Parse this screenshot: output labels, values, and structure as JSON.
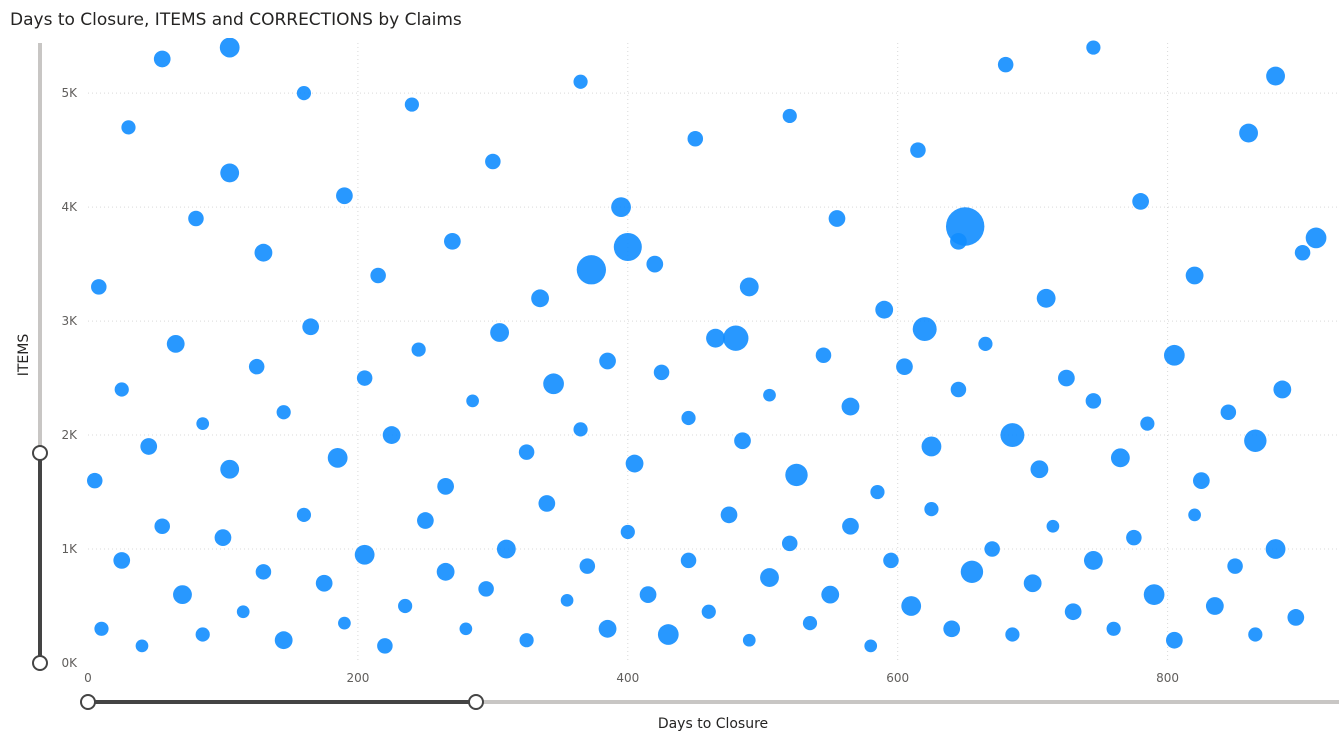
{
  "chart_data": {
    "type": "scatter",
    "title": "Days to Closure, ITEMS and CORRECTIONS by Claims",
    "xlabel": "Days to Closure",
    "ylabel": "ITEMS",
    "color": "#118dff",
    "grid": true,
    "xlim": [
      0,
      927
    ],
    "ylim": [
      0,
      5440
    ],
    "xticks": [
      0,
      200,
      400,
      600,
      800
    ],
    "yticks": [
      {
        "value": 0,
        "label": "0K"
      },
      {
        "value": 1000,
        "label": "1K"
      },
      {
        "value": 2000,
        "label": "2K"
      },
      {
        "value": 3000,
        "label": "3K"
      },
      {
        "value": 4000,
        "label": "4K"
      },
      {
        "value": 5000,
        "label": "5K"
      }
    ],
    "x": [
      10,
      25,
      40,
      55,
      70,
      85,
      100,
      115,
      130,
      145,
      160,
      175,
      190,
      205,
      220,
      235,
      250,
      265,
      280,
      295,
      310,
      325,
      340,
      355,
      370,
      385,
      400,
      415,
      430,
      445,
      460,
      475,
      490,
      505,
      520,
      535,
      550,
      565,
      580,
      595,
      610,
      625,
      640,
      655,
      670,
      685,
      700,
      715,
      730,
      745,
      760,
      775,
      790,
      805,
      820,
      835,
      850,
      865,
      880,
      895,
      5,
      25,
      45,
      65,
      85,
      105,
      125,
      145,
      165,
      185,
      205,
      225,
      245,
      265,
      285,
      305,
      325,
      345,
      365,
      385,
      405,
      425,
      445,
      465,
      485,
      505,
      525,
      545,
      565,
      585,
      605,
      625,
      645,
      665,
      685,
      705,
      725,
      745,
      765,
      785,
      805,
      825,
      845,
      865,
      885,
      8,
      30,
      55,
      80,
      105,
      130,
      160,
      190,
      215,
      240,
      270,
      300,
      335,
      365,
      395,
      420,
      450,
      490,
      520,
      555,
      590,
      615,
      645,
      680,
      710,
      745,
      780,
      820,
      860,
      900,
      650,
      373,
      400,
      620,
      480,
      910,
      880,
      105
    ],
    "y": [
      300,
      900,
      150,
      1200,
      600,
      250,
      1100,
      450,
      800,
      200,
      1300,
      700,
      350,
      950,
      150,
      500,
      1250,
      800,
      300,
      650,
      1000,
      200,
      1400,
      550,
      850,
      300,
      1150,
      600,
      250,
      900,
      450,
      1300,
      200,
      750,
      1050,
      350,
      600,
      1200,
      150,
      900,
      500,
      1350,
      300,
      800,
      1000,
      250,
      700,
      1200,
      450,
      900,
      300,
      1100,
      600,
      200,
      1300,
      500,
      850,
      250,
      1000,
      400,
      1600,
      2400,
      1900,
      2800,
      2100,
      1700,
      2600,
      2200,
      2950,
      1800,
      2500,
      2000,
      2750,
      1550,
      2300,
      2900,
      1850,
      2450,
      2050,
      2650,
      1750,
      2550,
      2150,
      2850,
      1950,
      2350,
      1650,
      2700,
      2250,
      1500,
      2600,
      1900,
      2400,
      2800,
      2000,
      1700,
      2500,
      2300,
      1800,
      2100,
      2700,
      1600,
      2200,
      1950,
      2400,
      3300,
      4700,
      5300,
      3900,
      4300,
      3600,
      5000,
      4100,
      3400,
      4900,
      3700,
      4400,
      3200,
      5100,
      4000,
      3500,
      4600,
      3300,
      4800,
      3900,
      3100,
      4500,
      3700,
      5250,
      3200,
      5400,
      4050,
      3400,
      4650,
      3600,
      3830,
      3450,
      3650,
      2930,
      2850,
      3730,
      5150,
      5400
    ],
    "size": [
      4,
      6,
      3,
      5,
      8,
      4,
      6,
      3,
      5,
      7,
      4,
      6,
      3,
      9,
      5,
      4,
      6,
      7,
      3,
      5,
      8,
      4,
      6,
      3,
      5,
      7,
      4,
      6,
      10,
      5,
      4,
      6,
      3,
      8,
      5,
      4,
      7,
      6,
      3,
      5,
      9,
      4,
      6,
      12,
      5,
      4,
      7,
      3,
      6,
      8,
      4,
      5,
      10,
      6,
      3,
      7,
      5,
      4,
      9,
      6,
      5,
      4,
      6,
      7,
      3,
      8,
      5,
      4,
      6,
      9,
      5,
      7,
      4,
      6,
      3,
      8,
      5,
      10,
      4,
      6,
      7,
      5,
      4,
      8,
      6,
      3,
      12,
      5,
      7,
      4,
      6,
      9,
      5,
      4,
      14,
      7,
      6,
      5,
      8,
      4,
      10,
      6,
      5,
      12,
      7,
      5,
      4,
      6,
      5,
      8,
      7,
      4,
      6,
      5,
      4,
      6,
      5,
      7,
      4,
      9,
      6,
      5,
      8,
      4,
      6,
      7,
      5,
      6,
      5,
      8,
      4,
      6,
      7,
      8,
      5,
      40,
      22,
      20,
      14,
      16,
      10,
      8,
      9
    ]
  }
}
